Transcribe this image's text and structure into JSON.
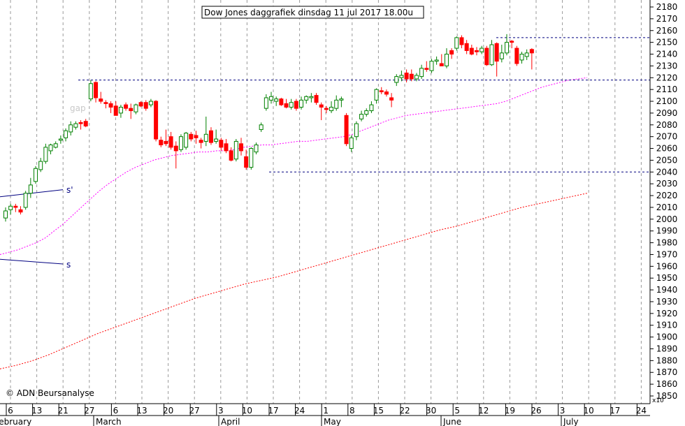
{
  "chart_data": {
    "type": "candlestick",
    "title": "Dow Jones daggrafiek dinsdag 11 jul 2017 18.00u",
    "copyright": "© ADN Beursanalyse",
    "scale_note": "x10",
    "ylim": [
      1850,
      2185
    ],
    "y_ticks": [
      2180,
      2170,
      2160,
      2150,
      2140,
      2130,
      2120,
      2110,
      2100,
      2090,
      2080,
      2070,
      2060,
      2050,
      2040,
      2030,
      2020,
      2010,
      2000,
      1990,
      1980,
      1970,
      1960,
      1950,
      1940,
      1930,
      1920,
      1910,
      1900,
      1890,
      1880,
      1870,
      1860,
      1850
    ],
    "x_ticks": [
      "6",
      "13",
      "21",
      "27",
      "6",
      "13",
      "20",
      "27",
      "3",
      "10",
      "17",
      "24",
      "1",
      "8",
      "15",
      "22",
      "30",
      "5",
      "12",
      "19",
      "26",
      "3",
      "10",
      "17",
      "24"
    ],
    "months": [
      "February",
      "March",
      "April",
      "May",
      "June",
      "July"
    ],
    "colors": {
      "up": "#008000",
      "down": "#ff0000",
      "ma_short": "#ff00ff",
      "ma_long": "#ff0000",
      "support": "#000080"
    },
    "candles": [
      {
        "o": 2001,
        "h": 2010,
        "l": 1998,
        "c": 2007
      },
      {
        "o": 2008,
        "h": 2013,
        "l": 2004,
        "c": 2011
      },
      {
        "o": 2011,
        "h": 2013,
        "l": 2006,
        "c": 2010
      },
      {
        "o": 2008,
        "h": 2011,
        "l": 2004,
        "c": 2006
      },
      {
        "o": 2010,
        "h": 2024,
        "l": 2008,
        "c": 2022
      },
      {
        "o": 2022,
        "h": 2035,
        "l": 2018,
        "c": 2029
      },
      {
        "o": 2032,
        "h": 2045,
        "l": 2030,
        "c": 2043
      },
      {
        "o": 2042,
        "h": 2052,
        "l": 2040,
        "c": 2049
      },
      {
        "o": 2049,
        "h": 2064,
        "l": 2047,
        "c": 2061
      },
      {
        "o": 2058,
        "h": 2064,
        "l": 2055,
        "c": 2063
      },
      {
        "o": 2061,
        "h": 2066,
        "l": 2060,
        "c": 2064
      },
      {
        "o": 2067,
        "h": 2071,
        "l": 2064,
        "c": 2068
      },
      {
        "o": 2069,
        "h": 2077,
        "l": 2066,
        "c": 2075
      },
      {
        "o": 2074,
        "h": 2083,
        "l": 2071,
        "c": 2080
      },
      {
        "o": 2078,
        "h": 2083,
        "l": 2076,
        "c": 2081
      },
      {
        "o": 2082,
        "h": 2084,
        "l": 2076,
        "c": 2081
      },
      {
        "o": 2083,
        "h": 2085,
        "l": 2078,
        "c": 2079
      },
      {
        "o": 2102,
        "h": 2118,
        "l": 2100,
        "c": 2115
      },
      {
        "o": 2116,
        "h": 2117,
        "l": 2099,
        "c": 2103
      },
      {
        "o": 2102,
        "h": 2108,
        "l": 2098,
        "c": 2100
      },
      {
        "o": 2099,
        "h": 2101,
        "l": 2094,
        "c": 2098
      },
      {
        "o": 2098,
        "h": 2100,
        "l": 2090,
        "c": 2095
      },
      {
        "o": 2096,
        "h": 2100,
        "l": 2090,
        "c": 2088
      },
      {
        "o": 2090,
        "h": 2097,
        "l": 2086,
        "c": 2095
      },
      {
        "o": 2097,
        "h": 2099,
        "l": 2092,
        "c": 2094
      },
      {
        "o": 2094,
        "h": 2098,
        "l": 2085,
        "c": 2092
      },
      {
        "o": 2091,
        "h": 2098,
        "l": 2089,
        "c": 2097
      },
      {
        "o": 2099,
        "h": 2100,
        "l": 2095,
        "c": 2096
      },
      {
        "o": 2099,
        "h": 2101,
        "l": 2092,
        "c": 2094
      },
      {
        "o": 2097,
        "h": 2102,
        "l": 2095,
        "c": 2100
      },
      {
        "o": 2100,
        "h": 2101,
        "l": 2066,
        "c": 2068
      },
      {
        "o": 2067,
        "h": 2070,
        "l": 2061,
        "c": 2063
      },
      {
        "o": 2066,
        "h": 2076,
        "l": 2062,
        "c": 2064
      },
      {
        "o": 2070,
        "h": 2074,
        "l": 2059,
        "c": 2061
      },
      {
        "o": 2062,
        "h": 2066,
        "l": 2043,
        "c": 2058
      },
      {
        "o": 2059,
        "h": 2072,
        "l": 2057,
        "c": 2070
      },
      {
        "o": 2061,
        "h": 2074,
        "l": 2059,
        "c": 2073
      },
      {
        "o": 2072,
        "h": 2074,
        "l": 2066,
        "c": 2068
      },
      {
        "o": 2071,
        "h": 2075,
        "l": 2064,
        "c": 2069
      },
      {
        "o": 2067,
        "h": 2069,
        "l": 2060,
        "c": 2065
      },
      {
        "o": 2066,
        "h": 2087,
        "l": 2062,
        "c": 2072
      },
      {
        "o": 2075,
        "h": 2078,
        "l": 2063,
        "c": 2065
      },
      {
        "o": 2066,
        "h": 2076,
        "l": 2064,
        "c": 2068
      },
      {
        "o": 2067,
        "h": 2069,
        "l": 2058,
        "c": 2061
      },
      {
        "o": 2064,
        "h": 2068,
        "l": 2056,
        "c": 2058
      },
      {
        "o": 2058,
        "h": 2061,
        "l": 2049,
        "c": 2050
      },
      {
        "o": 2051,
        "h": 2068,
        "l": 2049,
        "c": 2066
      },
      {
        "o": 2064,
        "h": 2069,
        "l": 2054,
        "c": 2058
      },
      {
        "o": 2053,
        "h": 2059,
        "l": 2042,
        "c": 2044
      },
      {
        "o": 2044,
        "h": 2061,
        "l": 2042,
        "c": 2060
      },
      {
        "o": 2057,
        "h": 2065,
        "l": 2055,
        "c": 2063
      },
      {
        "o": 2076,
        "h": 2082,
        "l": 2074,
        "c": 2080
      },
      {
        "o": 2094,
        "h": 2106,
        "l": 2092,
        "c": 2103
      },
      {
        "o": 2101,
        "h": 2108,
        "l": 2098,
        "c": 2104
      },
      {
        "o": 2100,
        "h": 2104,
        "l": 2096,
        "c": 2102
      },
      {
        "o": 2102,
        "h": 2103,
        "l": 2096,
        "c": 2097
      },
      {
        "o": 2098,
        "h": 2102,
        "l": 2094,
        "c": 2095
      },
      {
        "o": 2095,
        "h": 2102,
        "l": 2093,
        "c": 2099
      },
      {
        "o": 2100,
        "h": 2102,
        "l": 2092,
        "c": 2094
      },
      {
        "o": 2095,
        "h": 2104,
        "l": 2093,
        "c": 2101
      },
      {
        "o": 2101,
        "h": 2105,
        "l": 2098,
        "c": 2104
      },
      {
        "o": 2103,
        "h": 2107,
        "l": 2099,
        "c": 2104
      },
      {
        "o": 2105,
        "h": 2107,
        "l": 2097,
        "c": 2099
      },
      {
        "o": 2097,
        "h": 2099,
        "l": 2084,
        "c": 2095
      },
      {
        "o": 2094,
        "h": 2096,
        "l": 2090,
        "c": 2093
      },
      {
        "o": 2092,
        "h": 2100,
        "l": 2090,
        "c": 2095
      },
      {
        "o": 2094,
        "h": 2105,
        "l": 2092,
        "c": 2101
      },
      {
        "o": 2101,
        "h": 2104,
        "l": 2095,
        "c": 2102
      },
      {
        "o": 2088,
        "h": 2090,
        "l": 2062,
        "c": 2064
      },
      {
        "o": 2060,
        "h": 2071,
        "l": 2057,
        "c": 2069
      },
      {
        "o": 2070,
        "h": 2083,
        "l": 2067,
        "c": 2081
      },
      {
        "o": 2085,
        "h": 2092,
        "l": 2083,
        "c": 2089
      },
      {
        "o": 2089,
        "h": 2094,
        "l": 2087,
        "c": 2092
      },
      {
        "o": 2092,
        "h": 2100,
        "l": 2090,
        "c": 2097
      },
      {
        "o": 2101,
        "h": 2111,
        "l": 2098,
        "c": 2110
      },
      {
        "o": 2109,
        "h": 2112,
        "l": 2106,
        "c": 2108
      },
      {
        "o": 2108,
        "h": 2110,
        "l": 2104,
        "c": 2106
      },
      {
        "o": 2103,
        "h": 2107,
        "l": 2095,
        "c": 2101
      },
      {
        "o": 2116,
        "h": 2123,
        "l": 2113,
        "c": 2121
      },
      {
        "o": 2120,
        "h": 2126,
        "l": 2117,
        "c": 2122
      },
      {
        "o": 2124,
        "h": 2127,
        "l": 2116,
        "c": 2119
      },
      {
        "o": 2123,
        "h": 2127,
        "l": 2117,
        "c": 2119
      },
      {
        "o": 2119,
        "h": 2124,
        "l": 2117,
        "c": 2122
      },
      {
        "o": 2121,
        "h": 2131,
        "l": 2119,
        "c": 2128
      },
      {
        "o": 2128,
        "h": 2134,
        "l": 2125,
        "c": 2127
      },
      {
        "o": 2126,
        "h": 2136,
        "l": 2124,
        "c": 2134
      },
      {
        "o": 2134,
        "h": 2138,
        "l": 2131,
        "c": 2135
      },
      {
        "o": 2132,
        "h": 2140,
        "l": 2130,
        "c": 2130
      },
      {
        "o": 2130,
        "h": 2145,
        "l": 2128,
        "c": 2140
      },
      {
        "o": 2143,
        "h": 2145,
        "l": 2136,
        "c": 2140
      },
      {
        "o": 2145,
        "h": 2155,
        "l": 2143,
        "c": 2154
      },
      {
        "o": 2154,
        "h": 2156,
        "l": 2145,
        "c": 2148
      },
      {
        "o": 2149,
        "h": 2152,
        "l": 2140,
        "c": 2143
      },
      {
        "o": 2145,
        "h": 2148,
        "l": 2139,
        "c": 2140
      },
      {
        "o": 2143,
        "h": 2146,
        "l": 2139,
        "c": 2142
      },
      {
        "o": 2142,
        "h": 2147,
        "l": 2140,
        "c": 2145
      },
      {
        "o": 2145,
        "h": 2147,
        "l": 2130,
        "c": 2131
      },
      {
        "o": 2131,
        "h": 2152,
        "l": 2130,
        "c": 2148
      },
      {
        "o": 2149,
        "h": 2150,
        "l": 2121,
        "c": 2134
      },
      {
        "o": 2136,
        "h": 2148,
        "l": 2133,
        "c": 2141
      },
      {
        "o": 2141,
        "h": 2157,
        "l": 2139,
        "c": 2150
      },
      {
        "o": 2151,
        "h": 2152,
        "l": 2145,
        "c": 2150
      },
      {
        "o": 2145,
        "h": 2147,
        "l": 2130,
        "c": 2132
      },
      {
        "o": 2135,
        "h": 2142,
        "l": 2132,
        "c": 2140
      },
      {
        "o": 2138,
        "h": 2144,
        "l": 2135,
        "c": 2141
      },
      {
        "o": 2144,
        "h": 2145,
        "l": 2127,
        "c": 2141
      }
    ],
    "ma_short": [
      1970,
      1972,
      1974,
      1977,
      1980,
      1984,
      1990,
      1996,
      2003,
      2010,
      2017,
      2024,
      2030,
      2035,
      2040,
      2044,
      2047,
      2050,
      2052,
      2054,
      2055,
      2056,
      2057,
      2057,
      2058,
      2058,
      2059,
      2061,
      2062,
      2063,
      2063,
      2064,
      2065,
      2066,
      2066,
      2067,
      2068,
      2069,
      2070,
      2072,
      2075,
      2078,
      2081,
      2084,
      2086,
      2088,
      2089,
      2090,
      2091,
      2092,
      2093,
      2094,
      2095,
      2096,
      2097,
      2098,
      2100,
      2103,
      2106,
      2109,
      2112,
      2114,
      2116,
      2118,
      2119,
      2120
    ],
    "ma_long": [
      1873,
      1876,
      1880,
      1885,
      1891,
      1897,
      1903,
      1908,
      1913,
      1918,
      1923,
      1928,
      1933,
      1937,
      1941,
      1945,
      1948,
      1951,
      1955,
      1959,
      1963,
      1967,
      1971,
      1975,
      1979,
      1983,
      1987,
      1991,
      1994,
      1998,
      2002,
      2006,
      2010,
      2013,
      2016,
      2019,
      2022
    ],
    "support": [
      {
        "level": 2154
      },
      {
        "level": 2118
      },
      {
        "level": 2040
      }
    ],
    "trend_labels": [
      "s'",
      "s"
    ],
    "trend_lines": [
      {
        "label": "s'",
        "from": 2019,
        "to": 2025
      },
      {
        "label": "s",
        "from": 1966,
        "to": 1962
      }
    ],
    "annotation": "gap",
    "grid": "vertical dashed"
  }
}
